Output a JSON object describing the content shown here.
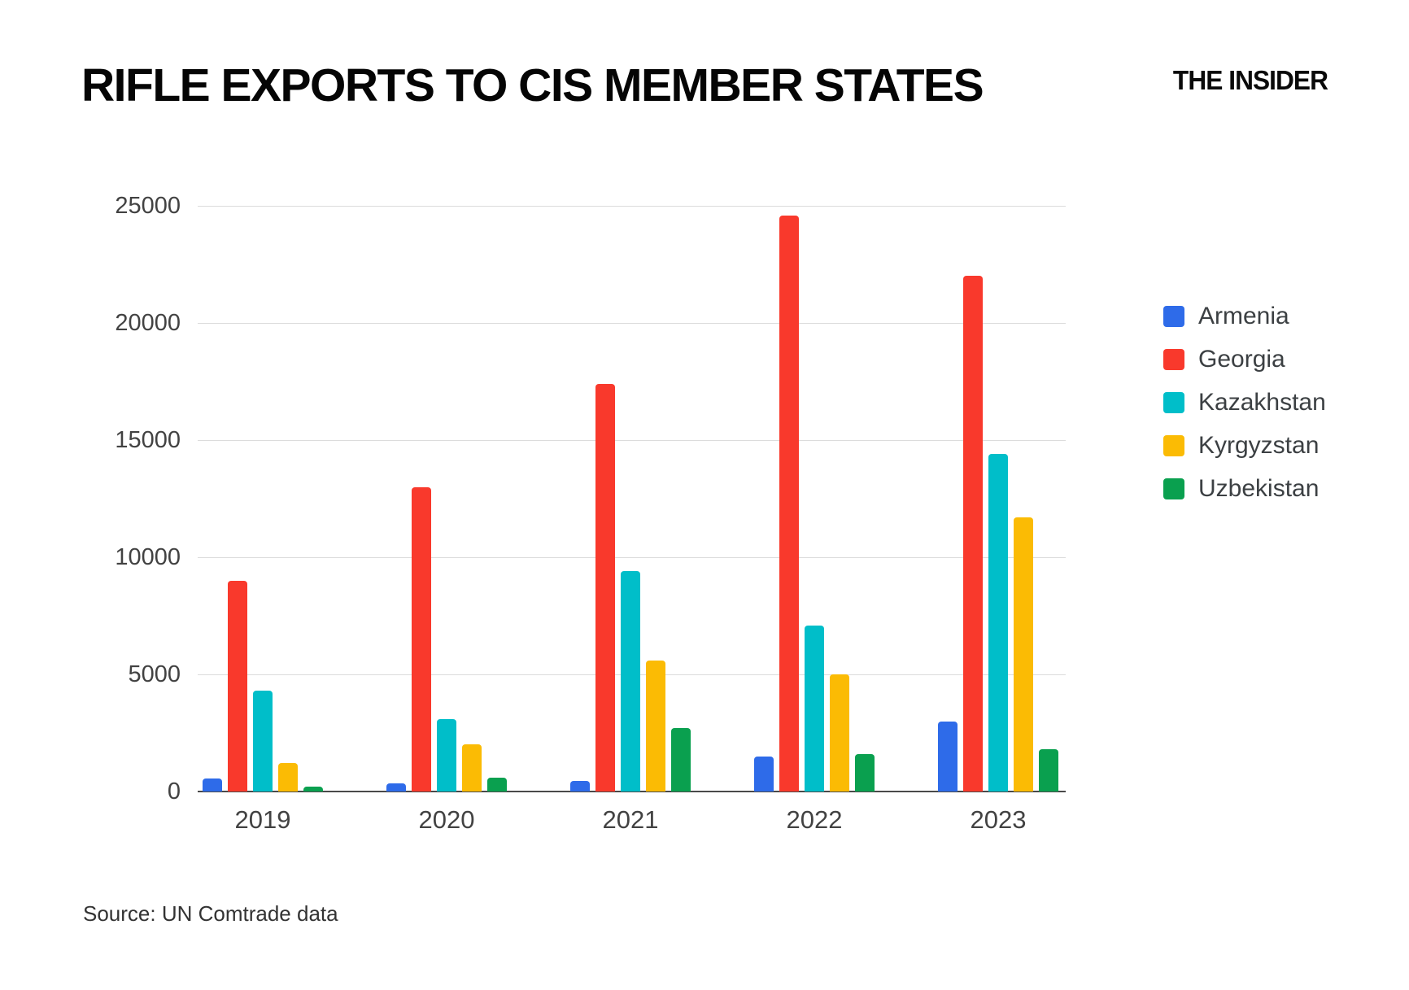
{
  "header": {
    "title": "RIFLE EXPORTS TO CIS MEMBER STATES",
    "logo": "THE INSIDER"
  },
  "source": {
    "text": "Source: UN Comtrade data"
  },
  "chart_data": {
    "type": "bar",
    "title": "RIFLE EXPORTS TO CIS MEMBER STATES",
    "categories": [
      "2019",
      "2020",
      "2021",
      "2022",
      "2023"
    ],
    "series": [
      {
        "name": "Armenia",
        "color": "#2E6BE9",
        "values": [
          550,
          350,
          450,
          1500,
          3000
        ]
      },
      {
        "name": "Georgia",
        "color": "#F9392C",
        "values": [
          9000,
          13000,
          17400,
          24600,
          22000
        ]
      },
      {
        "name": "Kazakhstan",
        "color": "#00BEC9",
        "values": [
          4300,
          3100,
          9400,
          7100,
          14400
        ]
      },
      {
        "name": "Kyrgyzstan",
        "color": "#FBBB04",
        "values": [
          1200,
          2000,
          5600,
          5000,
          11700
        ]
      },
      {
        "name": "Uzbekistan",
        "color": "#0AA04F",
        "values": [
          200,
          600,
          2700,
          1600,
          1800
        ]
      }
    ],
    "xlabel": "",
    "ylabel": "",
    "ylim": [
      0,
      25000
    ],
    "yticks": [
      0,
      5000,
      10000,
      15000,
      20000,
      25000
    ],
    "grid": true,
    "legend_position": "right",
    "axis_color": "#4a4a4a",
    "gridline_color": "#dcdcdc",
    "tick_label_color": "#424242"
  }
}
